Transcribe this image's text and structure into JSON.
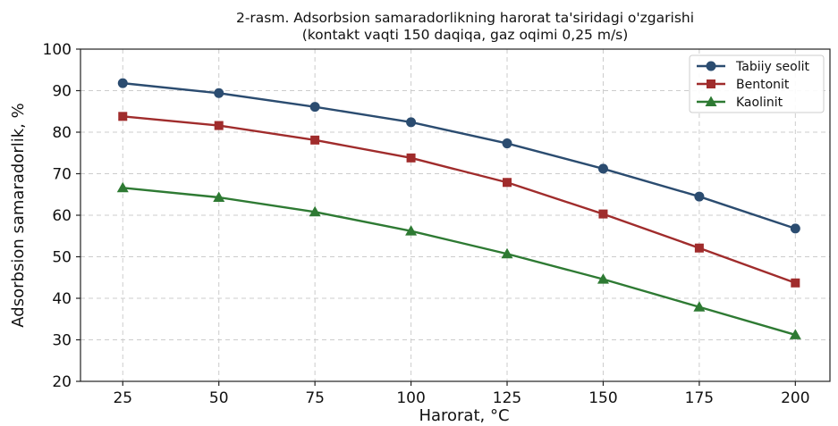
{
  "chart_data": {
    "type": "line",
    "title": "2-rasm. Adsorbsion samaradorlikning harorat ta'siridagi o'zgarishi",
    "subtitle": "(kontakt vaqti 150 daqiqa, gaz oqimi 0,25 m/s)",
    "xlabel": "Harorat, °C",
    "ylabel": "Adsorbsion samaradorlik, %",
    "x": [
      25,
      50,
      75,
      100,
      125,
      150,
      175,
      200
    ],
    "xticks": [
      "25",
      "50",
      "75",
      "100",
      "125",
      "150",
      "175",
      "200"
    ],
    "yticks": [
      "20",
      "30",
      "40",
      "50",
      "60",
      "70",
      "80",
      "90",
      "100"
    ],
    "xlim": [
      14,
      209
    ],
    "ylim": [
      20,
      100
    ],
    "grid": true,
    "legend_position": "top-right",
    "series": [
      {
        "name": "Tabiiy seolit",
        "color": "#2b4c70",
        "marker": "circle",
        "values": [
          91.8,
          89.4,
          86.1,
          82.4,
          77.3,
          71.2,
          64.5,
          56.8
        ]
      },
      {
        "name": "Bentonit",
        "color": "#a02c2c",
        "marker": "square",
        "values": [
          83.8,
          81.6,
          78.1,
          73.8,
          67.9,
          60.3,
          52.1,
          43.7
        ]
      },
      {
        "name": "Kaolinit",
        "color": "#2e7a33",
        "marker": "triangle",
        "values": [
          66.6,
          64.3,
          60.8,
          56.2,
          50.7,
          44.6,
          37.9,
          31.2
        ]
      }
    ]
  }
}
